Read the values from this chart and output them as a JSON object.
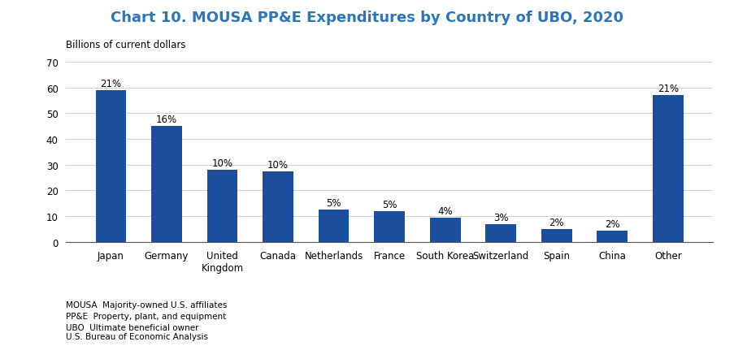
{
  "title": "Chart 10. MOUSA PP&E Expenditures by Country of UBO, 2020",
  "ylabel": "Billions of current dollars",
  "categories": [
    "Japan",
    "Germany",
    "United\nKingdom",
    "Canada",
    "Netherlands",
    "France",
    "South Korea",
    "Switzerland",
    "Spain",
    "China",
    "Other"
  ],
  "values": [
    59,
    45,
    28,
    27.5,
    12.5,
    12,
    9.5,
    7,
    5,
    4.5,
    57
  ],
  "percentages": [
    "21%",
    "16%",
    "10%",
    "10%",
    "5%",
    "5%",
    "4%",
    "3%",
    "2%",
    "2%",
    "21%"
  ],
  "bar_color": "#1B4F9B",
  "ylim": [
    0,
    70
  ],
  "yticks": [
    0,
    10,
    20,
    30,
    40,
    50,
    60,
    70
  ],
  "title_color": "#2E75B6",
  "footnote_lines": [
    "MOUSA  Majority-owned U.S. affiliates",
    "PP&E  Property, plant, and equipment",
    "UBO  Ultimate beneficial owner",
    "",
    "U.S. Bureau of Economic Analysis"
  ],
  "title_fontsize": 13,
  "label_fontsize": 8.5,
  "tick_fontsize": 8.5,
  "footnote_fontsize": 7.5
}
